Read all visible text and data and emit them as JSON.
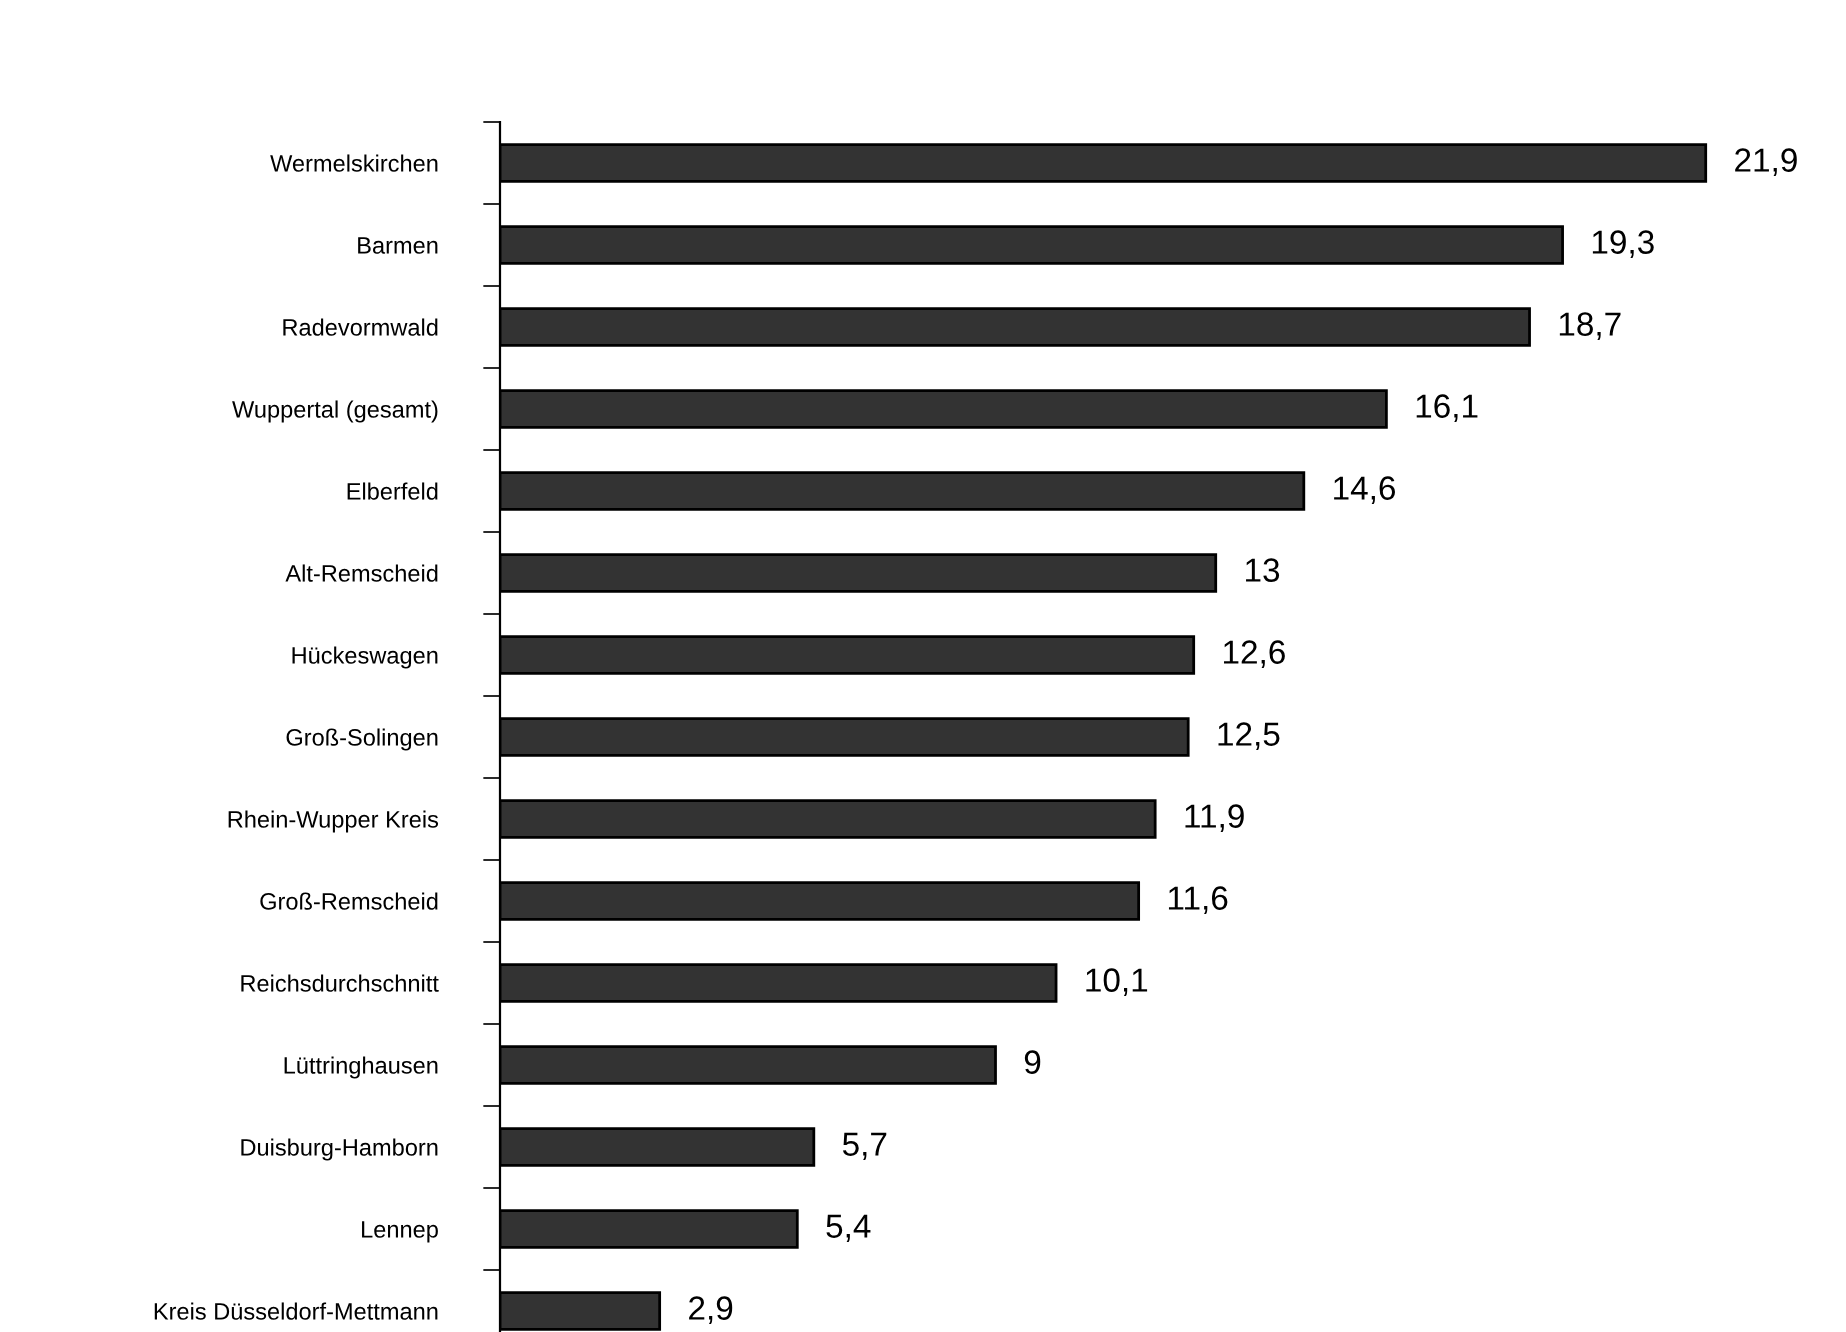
{
  "chart_data": {
    "type": "bar",
    "orientation": "horizontal",
    "categories": [
      "Wermelskirchen",
      "Barmen",
      "Radevormwald",
      "Wuppertal (gesamt)",
      "Elberfeld",
      "Alt-Remscheid",
      "Hückeswagen",
      "Groß-Solingen",
      "Rhein-Wupper Kreis",
      "Groß-Remscheid",
      "Reichsdurchschnitt",
      "Lüttringhausen",
      "Duisburg-Hamborn",
      "Lennep",
      "Kreis Düsseldorf-Mettmann"
    ],
    "values": [
      21.9,
      19.3,
      18.7,
      16.1,
      14.6,
      13,
      12.6,
      12.5,
      11.9,
      11.6,
      10.1,
      9,
      5.7,
      5.4,
      2.9
    ],
    "value_labels": [
      "21,9",
      "19,3",
      "18,7",
      "16,1",
      "14,6",
      "13",
      "12,6",
      "12,5",
      "11,9",
      "11,6",
      "10,1",
      "9",
      "5,7",
      "5,4",
      "2,9"
    ],
    "color": "#333333",
    "grid": false,
    "legend": false
  }
}
